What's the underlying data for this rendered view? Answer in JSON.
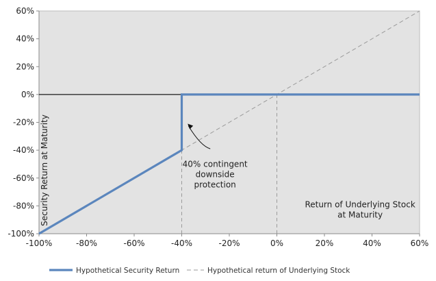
{
  "chart_data": {
    "type": "line",
    "xlim": [
      -100,
      60
    ],
    "ylim": [
      -100,
      60
    ],
    "x_ticks": [
      "-100%",
      "-80%",
      "-60%",
      "-40%",
      "-20%",
      "0%",
      "20%",
      "40%",
      "60%"
    ],
    "y_ticks": [
      "-100%",
      "-80%",
      "-60%",
      "-40%",
      "-20%",
      "0%",
      "20%",
      "40%",
      "60%"
    ],
    "x_tick_values": [
      -100,
      -80,
      -60,
      -40,
      -20,
      0,
      20,
      40,
      60
    ],
    "y_tick_values": [
      -100,
      -80,
      -60,
      -40,
      -20,
      0,
      20,
      40,
      60
    ],
    "ylabel": "Security Return at Maturity",
    "xlabel": "Return of Underlying Stock at Maturity",
    "xlabel_lines": [
      "Return of Underlying Stock",
      "at Maturity"
    ],
    "grid": false,
    "background": "#e3e3e3",
    "series": [
      {
        "name": "Hypothetical Security Return",
        "color": "#5b86bd",
        "style": "solid",
        "x": [
          -100,
          -40,
          -40,
          60
        ],
        "y": [
          -100,
          -40,
          0,
          0
        ]
      },
      {
        "name": "Hypothetical return of Underlying Stock",
        "color": "#9a9a9a",
        "style": "dashed",
        "x": [
          -100,
          60
        ],
        "y": [
          -100,
          60
        ]
      }
    ],
    "annotation": {
      "lines": [
        "40% contingent",
        "downside",
        "protection"
      ]
    },
    "legend": {
      "position": "bottom-left",
      "items": [
        "Hypothetical Security Return",
        "Hypothetical return of Underlying Stock"
      ]
    }
  }
}
